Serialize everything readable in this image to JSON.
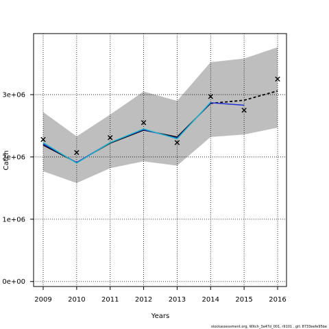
{
  "chart_data": {
    "type": "line",
    "title": "",
    "xlabel": "Years",
    "ylabel": "Catch",
    "footer": "stockassessment.org, Witch_3a47d_001, r9101 , git: 8733eefe95be",
    "xlim": [
      2009,
      2016
    ],
    "ylim": [
      -80000,
      3980000
    ],
    "x_ticks": [
      "2009",
      "2010",
      "2011",
      "2012",
      "2013",
      "2014",
      "2015",
      "2016"
    ],
    "y_ticks": [
      {
        "value": 0,
        "label": "0e+00"
      },
      {
        "value": 1000000,
        "label": "1e+06"
      },
      {
        "value": 2000000,
        "label": "2e+06"
      },
      {
        "value": 3000000,
        "label": "3e+06"
      }
    ],
    "grid": true,
    "grid_style": "dotted",
    "x": [
      2009,
      2010,
      2011,
      2012,
      2013,
      2014,
      2015,
      2016
    ],
    "confidence_band": {
      "x": [
        2009,
        2010,
        2011,
        2012,
        2013,
        2014,
        2015,
        2016
      ],
      "lower": [
        1770000,
        1580000,
        1820000,
        1930000,
        1860000,
        2320000,
        2360000,
        2470000
      ],
      "upper": [
        2720000,
        2330000,
        2680000,
        3050000,
        2900000,
        3520000,
        3580000,
        3760000
      ],
      "color": "#bebebe"
    },
    "series": [
      {
        "style": "line",
        "color": "#000000",
        "x": [
          2009,
          2010,
          2011,
          2012,
          2013,
          2014
        ],
        "values": [
          2190000,
          1910000,
          2220000,
          2430000,
          2320000,
          2860000
        ]
      },
      {
        "style": "dashed",
        "color": "#000000",
        "x": [
          2014,
          2015,
          2016
        ],
        "values": [
          2860000,
          2910000,
          3060000
        ]
      },
      {
        "style": "line",
        "color": "#1f2fd0",
        "x": [
          2009,
          2010,
          2011,
          2012,
          2013,
          2014,
          2015
        ],
        "values": [
          2210000,
          1910000,
          2230000,
          2440000,
          2300000,
          2870000,
          2830000
        ]
      },
      {
        "style": "line",
        "color": "#21b7c9",
        "x": [
          2009,
          2010,
          2011,
          2012,
          2013,
          2014
        ],
        "values": [
          2230000,
          1900000,
          2230000,
          2450000,
          2290000,
          2880000
        ]
      },
      {
        "style": "points",
        "marker": "x",
        "color": "#000000",
        "x": [
          2009,
          2010,
          2011,
          2012,
          2013,
          2014,
          2015,
          2016
        ],
        "values": [
          2280000,
          2070000,
          2310000,
          2550000,
          2230000,
          2970000,
          2750000,
          3250000
        ]
      }
    ]
  }
}
